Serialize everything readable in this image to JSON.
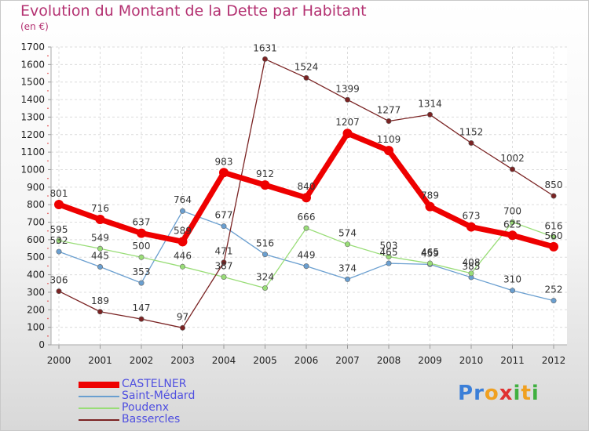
{
  "title": "Evolution du Montant de la Dette par Habitant",
  "unit_label": "(en €)",
  "logo": {
    "letters": [
      {
        "char": "P",
        "color": "#3b7fd8"
      },
      {
        "char": "r",
        "color": "#3b7fd8"
      },
      {
        "char": "o",
        "color": "#f0a020"
      },
      {
        "char": "x",
        "color": "#e03030"
      },
      {
        "char": "i",
        "color": "#40b040"
      },
      {
        "char": "t",
        "color": "#f0a020"
      },
      {
        "char": "i",
        "color": "#40b040"
      }
    ]
  },
  "chart_data": {
    "type": "line",
    "x": [
      "2000",
      "2001",
      "2002",
      "2003",
      "2004",
      "2005",
      "2006",
      "2007",
      "2008",
      "2009",
      "2010",
      "2011",
      "2012"
    ],
    "ylim": [
      0,
      1700
    ],
    "yticks": [
      0,
      100,
      200,
      300,
      400,
      500,
      600,
      700,
      800,
      900,
      1000,
      1100,
      1200,
      1300,
      1400,
      1500,
      1600,
      1700
    ],
    "grid": true,
    "legend_position": "bottom-left",
    "series": [
      {
        "name": "CASTELNER",
        "color": "#ee0000",
        "width": 7,
        "values": [
          801,
          716,
          637,
          589,
          983,
          912,
          840,
          1207,
          1109,
          789,
          673,
          625,
          560
        ],
        "labels": [
          "801",
          "716",
          "637",
          "589",
          "983",
          "912",
          "840",
          "1207",
          "1109",
          "789",
          "673",
          "625",
          "560"
        ]
      },
      {
        "name": "Saint-Médard",
        "color": "#6a9fd0",
        "width": 1.3,
        "values": [
          532,
          445,
          353,
          764,
          677,
          516,
          449,
          374,
          465,
          459,
          385,
          310,
          252
        ],
        "labels": [
          "532",
          "445",
          "353",
          "764",
          "677",
          "516",
          "449",
          "374",
          "465",
          "459",
          "385",
          "310",
          "252"
        ]
      },
      {
        "name": "Poudenx",
        "color": "#99dd77",
        "width": 1.3,
        "values": [
          595,
          549,
          500,
          446,
          387,
          324,
          666,
          574,
          503,
          465,
          408,
          700,
          616
        ],
        "labels": [
          "595",
          "549",
          "500",
          "446",
          "387",
          "324",
          "666",
          "574",
          "503",
          "465",
          "408",
          "700",
          "616"
        ]
      },
      {
        "name": "Bassercles",
        "color": "#7a2323",
        "width": 1.3,
        "values": [
          306,
          189,
          147,
          97,
          471,
          1631,
          1524,
          1399,
          1277,
          1314,
          1152,
          1002,
          850
        ],
        "labels": [
          "306",
          "189",
          "147",
          "97",
          "471",
          "1631",
          "1524",
          "1399",
          "1277",
          "1314",
          "1152",
          "1002",
          "850"
        ]
      }
    ]
  }
}
